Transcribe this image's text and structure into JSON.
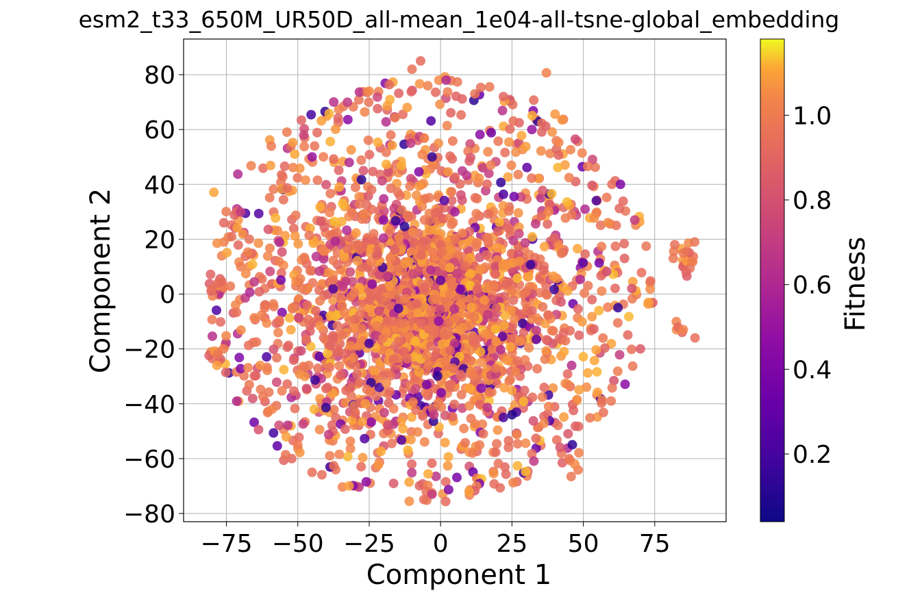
{
  "chart_data": {
    "type": "scatter",
    "title": "esm2_t33_650M_UR50D_all-mean_1e04-all-tsne-global_embedding",
    "xlabel": "Component 1",
    "ylabel": "Component 2",
    "xlim": [
      -90,
      100
    ],
    "ylim": [
      -83,
      93
    ],
    "xticks": [
      -75,
      -50,
      -25,
      0,
      25,
      50,
      75
    ],
    "yticks": [
      -80,
      -60,
      -40,
      -20,
      0,
      20,
      40,
      60,
      80
    ],
    "xtick_labels": [
      "−75",
      "−50",
      "−25",
      "0",
      "25",
      "50",
      "75"
    ],
    "ytick_labels": [
      "−80",
      "−60",
      "−40",
      "−20",
      "0",
      "20",
      "40",
      "60",
      "80"
    ],
    "grid": true,
    "colorbar": {
      "label": "Fitness",
      "colormap": "plasma",
      "range": [
        0.04,
        1.18
      ],
      "ticks": [
        0.2,
        0.4,
        0.6,
        0.8,
        1.0
      ],
      "tick_labels": [
        "0.2",
        "0.4",
        "0.6",
        "0.8",
        "1.0"
      ]
    },
    "approx_point_count": 3000,
    "distribution": "t-SNE embedding: dense central cloud spanning roughly x −75..90 and y −75..85; most points have fitness around 0.9–1.1 (orange/yellow) with scattered low-fitness (purple) points; isolated clusters near (85, 15), (-80, 0), (-78, -22), (47, -62), (-5, -72), (10, -72)",
    "series": [
      {
        "name": "Fitness",
        "points": [
          [
            85,
            15,
            0.98
          ],
          [
            88,
            12,
            1.0
          ],
          [
            82,
            18,
            0.95
          ],
          [
            86,
            8,
            0.9
          ],
          [
            89,
            19,
            0.97
          ],
          [
            85,
            -13,
            1.02
          ],
          [
            -80,
            2,
            0.95
          ],
          [
            -78,
            4,
            0.92
          ],
          [
            -78,
            -22,
            0.98
          ],
          [
            -76,
            -20,
            1.0
          ],
          [
            47,
            -62,
            1.05
          ],
          [
            45,
            -60,
            0.98
          ],
          [
            -5,
            -72,
            0.95
          ],
          [
            -3,
            -73,
            0.7
          ],
          [
            10,
            -72,
            1.1
          ],
          [
            -10,
            82,
            0.96
          ],
          [
            -7,
            85,
            0.92
          ],
          [
            -25,
            74,
            1.05
          ],
          [
            12,
            73,
            0.98
          ],
          [
            22,
            72,
            0.9
          ],
          [
            60,
            40,
            0.95
          ],
          [
            63,
            40,
            0.4
          ],
          [
            -70,
            10,
            1.0
          ],
          [
            -67,
            20,
            0.95
          ],
          [
            -67,
            -33,
            0.98
          ],
          [
            -50,
            -55,
            1.0
          ],
          [
            -45,
            -65,
            0.95
          ],
          [
            68,
            27,
            0.7
          ],
          [
            67,
            2,
            0.8
          ],
          [
            70,
            -20,
            0.85
          ],
          [
            -3,
            50,
            0.15
          ],
          [
            22,
            -45,
            0.2
          ],
          [
            25,
            -44,
            0.1
          ],
          [
            -25,
            -18,
            0.2
          ],
          [
            5,
            30,
            0.55
          ],
          [
            -20,
            27,
            0.45
          ],
          [
            32,
            60,
            0.5
          ],
          [
            -45,
            50,
            0.5
          ],
          [
            -32,
            48,
            0.6
          ],
          [
            0,
            5,
            0.3
          ]
        ]
      }
    ]
  }
}
